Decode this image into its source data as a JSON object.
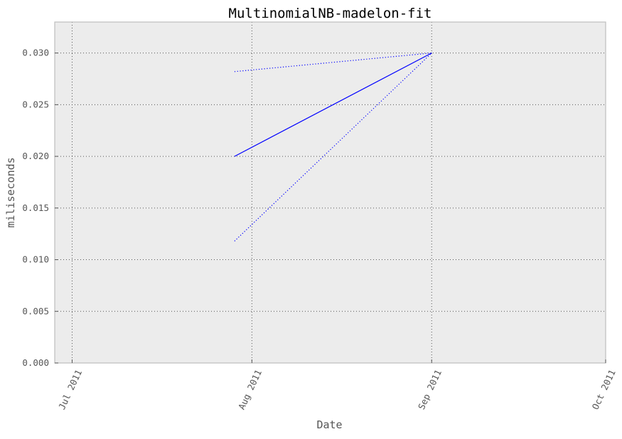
{
  "chart_data": {
    "type": "line",
    "title": "MultinomialNB-madelon-fit",
    "xlabel": "Date",
    "ylabel": "miliseconds",
    "x_axis_type": "date",
    "xlim": [
      "2011-06-28",
      "2011-10-01"
    ],
    "ylim": [
      0,
      0.033
    ],
    "xticks": [
      "2011-07-01",
      "2011-08-01",
      "2011-09-01",
      "2011-10-01"
    ],
    "xtick_labels": [
      "Jul 2011",
      "Aug 2011",
      "Sep 2011",
      "Oct 2011"
    ],
    "yticks": [
      0.0,
      0.005,
      0.01,
      0.015,
      0.02,
      0.025,
      0.03
    ],
    "ytick_labels": [
      "0.000",
      "0.005",
      "0.010",
      "0.015",
      "0.020",
      "0.025",
      "0.030"
    ],
    "grid": true,
    "series": [
      {
        "style": "solid",
        "color": "#0000ff",
        "x": [
          "2011-07-29",
          "2011-09-01"
        ],
        "y": [
          0.02,
          0.03
        ]
      },
      {
        "style": "dotted",
        "color": "#0000ff",
        "x": [
          "2011-07-29",
          "2011-09-01"
        ],
        "y": [
          0.0282,
          0.03
        ]
      },
      {
        "style": "dotted",
        "color": "#0000ff",
        "x": [
          "2011-07-29",
          "2011-09-01"
        ],
        "y": [
          0.0118,
          0.03
        ]
      }
    ],
    "colors": {
      "plot_background": "#ececec",
      "frame": "#bfbfbf",
      "grid": "#555555"
    }
  }
}
